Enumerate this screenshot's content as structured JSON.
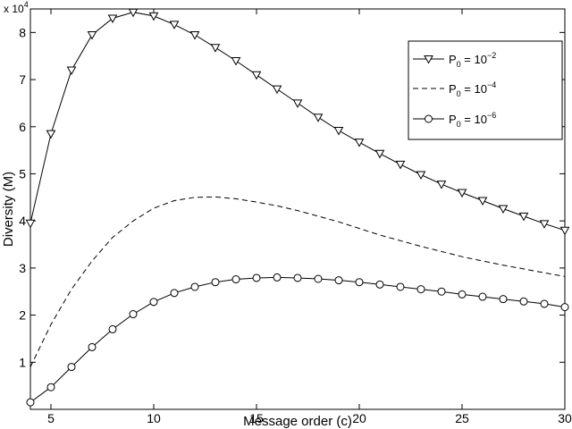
{
  "chart_data": {
    "type": "line",
    "title": "",
    "xlabel": "Message order (c)",
    "ylabel": "Diversity (M)",
    "y_multiplier": {
      "base": "x 10",
      "exponent": "4"
    },
    "xlim": [
      4,
      30
    ],
    "ylim": [
      0,
      85000
    ],
    "x_ticks": [
      5,
      10,
      15,
      20,
      25,
      30
    ],
    "x_tick_labels": [
      "5",
      "10",
      "15",
      "20",
      "25",
      "30"
    ],
    "y_ticks": [
      10000,
      20000,
      30000,
      40000,
      50000,
      60000,
      70000,
      80000
    ],
    "y_tick_labels": [
      "1",
      "2",
      "3",
      "4",
      "5",
      "6",
      "7",
      "8"
    ],
    "grid": false,
    "legend_position": "top-right",
    "x": [
      4,
      5,
      6,
      7,
      8,
      9,
      10,
      11,
      12,
      13,
      14,
      15,
      16,
      17,
      18,
      19,
      20,
      21,
      22,
      23,
      24,
      25,
      26,
      27,
      28,
      29,
      30
    ],
    "series": [
      {
        "legend": {
          "base": "P",
          "sub": "0",
          "mid": " = 10",
          "sup": "−2"
        },
        "style": "solid",
        "marker": "triangle-down",
        "color": "#000000",
        "values": [
          39500,
          58500,
          72000,
          79500,
          83000,
          84300,
          83500,
          81700,
          79500,
          76800,
          74000,
          71000,
          68000,
          65000,
          62000,
          59200,
          56700,
          54300,
          52000,
          49800,
          47800,
          46000,
          44300,
          42600,
          41000,
          39400,
          38000
        ]
      },
      {
        "legend": {
          "base": "P",
          "sub": "0",
          "mid": " = 10",
          "sup": "−4"
        },
        "style": "dashed",
        "marker": "none",
        "color": "#000000",
        "values": [
          9000,
          18000,
          25500,
          31500,
          36500,
          40000,
          42700,
          44300,
          45000,
          45100,
          44700,
          44000,
          43200,
          42200,
          41000,
          39800,
          38400,
          37000,
          35800,
          34600,
          33500,
          32400,
          31500,
          30600,
          29800,
          29000,
          28200
        ]
      },
      {
        "legend": {
          "base": "P",
          "sub": "0",
          "mid": " = 10",
          "sup": "−6"
        },
        "style": "solid",
        "marker": "circle",
        "color": "#000000",
        "values": [
          1500,
          4700,
          9000,
          13200,
          17000,
          20200,
          22800,
          24700,
          26000,
          27000,
          27600,
          27900,
          28000,
          27900,
          27700,
          27400,
          27000,
          26500,
          26000,
          25500,
          25000,
          24400,
          23900,
          23400,
          22900,
          22400,
          21700
        ]
      }
    ]
  }
}
